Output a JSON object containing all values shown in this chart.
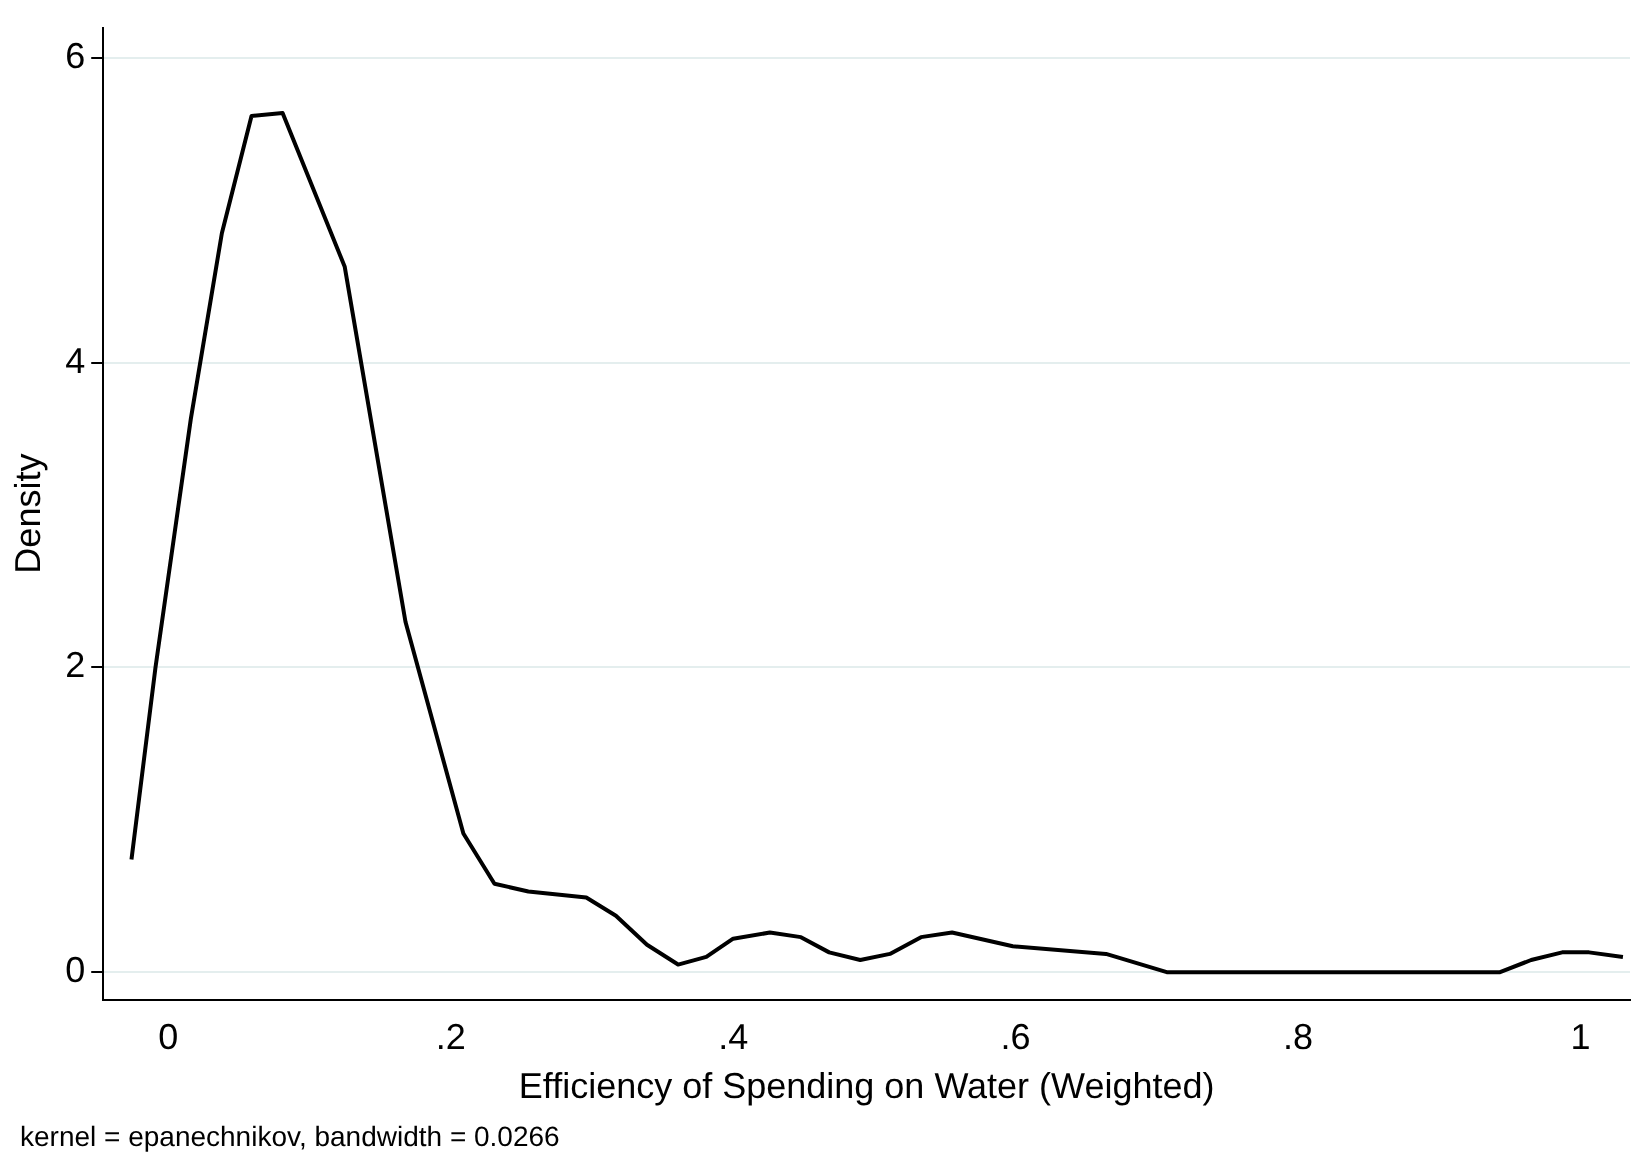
{
  "chart_data": {
    "type": "line",
    "xlabel": "Efficiency of Spending on Water (Weighted)",
    "ylabel": "Density",
    "annotations": [
      "kernel = epanechnikov, bandwidth = 0.0266"
    ],
    "xlim": [
      -0.046,
      1.035
    ],
    "ylim": [
      -0.18,
      6.2
    ],
    "xticks": [
      0,
      {
        "value": 0.2,
        "label": ".2"
      },
      {
        "value": 0.4,
        "label": ".4"
      },
      {
        "value": 0.6,
        "label": ".6"
      },
      {
        "value": 0.8,
        "label": ".8"
      },
      1
    ],
    "yticks": [
      0,
      2,
      4,
      6
    ],
    "grid": "y",
    "legend": false,
    "marker": "none",
    "line_style": "solid",
    "series": [
      {
        "color": "#000000",
        "x": [
          -0.026,
          -0.009,
          0.016,
          0.038,
          0.059,
          0.081,
          0.125,
          0.168,
          0.209,
          0.231,
          0.255,
          0.296,
          0.317,
          0.339,
          0.361,
          0.381,
          0.4,
          0.426,
          0.448,
          0.468,
          0.49,
          0.511,
          0.533,
          0.555,
          0.598,
          0.664,
          0.707,
          0.943,
          0.965,
          0.987,
          1.006,
          1.03
        ],
        "values": [
          0.74,
          2.0,
          3.63,
          4.85,
          5.62,
          5.64,
          4.63,
          2.3,
          0.91,
          0.58,
          0.53,
          0.49,
          0.37,
          0.18,
          0.05,
          0.1,
          0.22,
          0.26,
          0.23,
          0.13,
          0.08,
          0.12,
          0.23,
          0.26,
          0.17,
          0.12,
          0,
          0,
          0.08,
          0.13,
          0.13,
          0.1
        ]
      }
    ]
  }
}
